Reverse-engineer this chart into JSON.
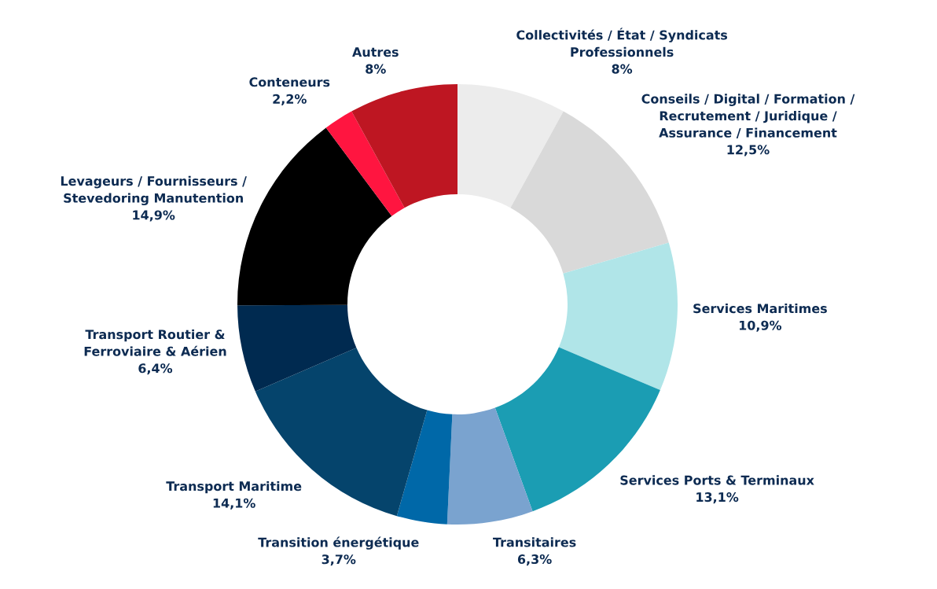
{
  "chart_data": {
    "type": "donut",
    "categories": [
      "Collectivités / État / Syndicats\nProfessionnels",
      "Conseils / Digital / Formation /\nRecrutement / Juridique /\nAssurance / Financement",
      "Services Maritimes",
      "Services Ports & Terminaux",
      "Transitaires",
      "Transition énergétique",
      "Transport Maritime",
      "Transport Routier &\nFerroviaire & Aérien",
      "Levageurs / Fournisseurs /\nStevedoring Manutention",
      "Conteneurs",
      "Autres"
    ],
    "values": [
      8,
      12.5,
      10.9,
      13.1,
      6.3,
      3.7,
      14.1,
      6.4,
      14.9,
      2.2,
      8
    ],
    "value_labels": [
      "8%",
      "12,5%",
      "10,9%",
      "13,1%",
      "6,3%",
      "3,7%",
      "14,1%",
      "6,4%",
      "14,9%",
      "2,2%",
      "8%"
    ],
    "colors": [
      "#ececec",
      "#d9d9d9",
      "#b0e5e8",
      "#1b9db3",
      "#7aa3cf",
      "#0068a8",
      "#05446c",
      "#002a50",
      "#000000",
      "#ff1540",
      "#be1622"
    ]
  }
}
